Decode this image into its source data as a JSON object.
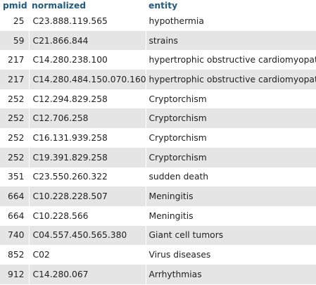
{
  "table": {
    "headers": [
      "pmid",
      "normalized",
      "entity"
    ],
    "rows": [
      {
        "pmid": "25",
        "normalized": "C23.888.119.565",
        "entity": "hypothermia"
      },
      {
        "pmid": "59",
        "normalized": "C21.866.844",
        "entity": "strains"
      },
      {
        "pmid": "217",
        "normalized": "C14.280.238.100",
        "entity": "hypertrophic obstructive cardiomyopathy"
      },
      {
        "pmid": "217",
        "normalized": "C14.280.484.150.070.160",
        "entity": "hypertrophic obstructive cardiomyopathy"
      },
      {
        "pmid": "252",
        "normalized": "C12.294.829.258",
        "entity": "Cryptorchism"
      },
      {
        "pmid": "252",
        "normalized": "C12.706.258",
        "entity": "Cryptorchism"
      },
      {
        "pmid": "252",
        "normalized": "C16.131.939.258",
        "entity": "Cryptorchism"
      },
      {
        "pmid": "252",
        "normalized": "C19.391.829.258",
        "entity": "Cryptorchism"
      },
      {
        "pmid": "351",
        "normalized": "C23.550.260.322",
        "entity": "sudden death"
      },
      {
        "pmid": "664",
        "normalized": "C10.228.228.507",
        "entity": "Meningitis"
      },
      {
        "pmid": "664",
        "normalized": "C10.228.566",
        "entity": "Meningitis"
      },
      {
        "pmid": "740",
        "normalized": "C04.557.450.565.380",
        "entity": "Giant cell tumors"
      },
      {
        "pmid": "852",
        "normalized": "C02",
        "entity": "Virus diseases"
      },
      {
        "pmid": "912",
        "normalized": "C14.280.067",
        "entity": "Arrhythmias"
      }
    ]
  },
  "colors": {
    "header_link": "#235a81",
    "row_even": "#e5e5e5",
    "row_odd": "#ffffff",
    "text": "#1f1f1f"
  }
}
